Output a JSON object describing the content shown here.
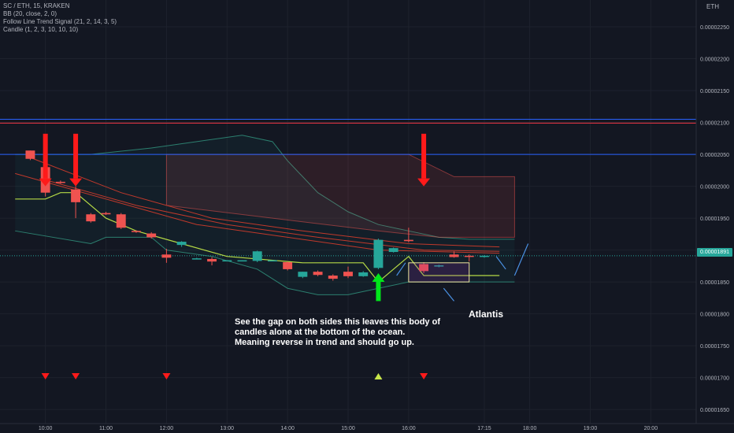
{
  "legend": {
    "symbol": "SC / ETH, 15, KRAKEN",
    "bb": "BB (20, close, 2, 0)",
    "follow_line": "Follow Line Trend Signal (21, 2, 14, 3, 5)",
    "candle": "Candle (1, 2, 3, 10, 10, 10)"
  },
  "currency_badge": "ETH",
  "last_price_tag": "0.00001891",
  "annotations": {
    "note_lines": [
      "See the gap on both sides this leaves this body of",
      "candles alone at the bottom of the ocean.",
      "Meaning reverse in trend and should go up."
    ],
    "atlantis": "Atlantis"
  },
  "colors": {
    "background": "#131722",
    "up": "#26a69a",
    "down": "#ef5350",
    "signal_down": "#ff1a1a",
    "signal_up": "#00e61a",
    "hline_blue": "#2962ff",
    "hline_red": "#f23645",
    "annotation_blue": "#4a90e2"
  },
  "chart_data": {
    "type": "candlestick",
    "symbol": "SC / ETH",
    "interval": "15",
    "exchange": "KRAKEN",
    "x_ticks": [
      "10:00",
      "11:00",
      "12:00",
      "13:00",
      "14:00",
      "15:00",
      "16:00",
      "17:15",
      "18:00",
      "19:00",
      "20:00"
    ],
    "y_ticks": [
      2.25e-05,
      2.2e-05,
      2.15e-05,
      2.1e-05,
      2.05e-05,
      2e-05,
      1.95e-05,
      1.9e-05,
      1.85e-05,
      1.8e-05,
      1.75e-05,
      1.7e-05,
      1.65e-05
    ],
    "y_tick_labels": [
      "0.00002250",
      "0.00002200",
      "0.00002150",
      "0.00002100",
      "0.00002050",
      "0.00002000",
      "0.00001950",
      "0.00001900",
      "0.00001850",
      "0.00001800",
      "0.00001750",
      "0.00001700",
      "0.00001650"
    ],
    "ylim": [
      1.628e-05,
      2.292e-05
    ],
    "last_price": 1.891e-05,
    "horizontal_lines": [
      {
        "price": 2.105e-05,
        "color": "#2962ff"
      },
      {
        "price": 2.099e-05,
        "color": "#f23645"
      },
      {
        "price": 2.05e-05,
        "color": "#2962ff"
      }
    ],
    "candles": [
      {
        "time": "09:45",
        "open": 2.056e-05,
        "high": 2.056e-05,
        "low": 2.041e-05,
        "close": 2.043e-05
      },
      {
        "time": "10:00",
        "open": 2.03e-05,
        "high": 2.032e-05,
        "low": 1.984e-05,
        "close": 1.99e-05
      },
      {
        "time": "10:15",
        "open": 2.007e-05,
        "high": 2.009e-05,
        "low": 2.004e-05,
        "close": 2.006e-05
      },
      {
        "time": "10:30",
        "open": 1.995e-05,
        "high": 2e-05,
        "low": 1.95e-05,
        "close": 1.975e-05
      },
      {
        "time": "10:45",
        "open": 1.956e-05,
        "high": 1.958e-05,
        "low": 1.943e-05,
        "close": 1.945e-05
      },
      {
        "time": "11:00",
        "open": 1.958e-05,
        "high": 1.96e-05,
        "low": 1.955e-05,
        "close": 1.956e-05
      },
      {
        "time": "11:15",
        "open": 1.956e-05,
        "high": 1.958e-05,
        "low": 1.933e-05,
        "close": 1.935e-05
      },
      {
        "time": "11:30",
        "open": 1.93e-05,
        "high": 1.931e-05,
        "low": 1.927e-05,
        "close": 1.929e-05
      },
      {
        "time": "11:45",
        "open": 1.926e-05,
        "high": 1.928e-05,
        "low": 1.918e-05,
        "close": 1.92e-05
      },
      {
        "time": "12:00",
        "open": 1.893e-05,
        "high": 1.902e-05,
        "low": 1.88e-05,
        "close": 1.888e-05
      },
      {
        "time": "12:15",
        "open": 1.908e-05,
        "high": 1.914e-05,
        "low": 1.905e-05,
        "close": 1.913e-05
      },
      {
        "time": "12:30",
        "open": 1.887e-05,
        "high": 1.888e-05,
        "low": 1.886e-05,
        "close": 1.887e-05
      },
      {
        "time": "12:45",
        "open": 1.886e-05,
        "high": 1.889e-05,
        "low": 1.876e-05,
        "close": 1.882e-05
      },
      {
        "time": "13:00",
        "open": 1.883e-05,
        "high": 1.884e-05,
        "low": 1.883e-05,
        "close": 1.884e-05
      },
      {
        "time": "13:15",
        "open": 1.883e-05,
        "high": 1.884e-05,
        "low": 1.883e-05,
        "close": 1.884e-05
      },
      {
        "time": "13:30",
        "open": 1.883e-05,
        "high": 1.899e-05,
        "low": 1.881e-05,
        "close": 1.898e-05
      },
      {
        "time": "13:45",
        "open": 1.883e-05,
        "high": 1.884e-05,
        "low": 1.883e-05,
        "close": 1.884e-05
      },
      {
        "time": "14:00",
        "open": 1.881e-05,
        "high": 1.882e-05,
        "low": 1.868e-05,
        "close": 1.87e-05
      },
      {
        "time": "14:15",
        "open": 1.858e-05,
        "high": 1.866e-05,
        "low": 1.856e-05,
        "close": 1.866e-05
      },
      {
        "time": "14:30",
        "open": 1.866e-05,
        "high": 1.868e-05,
        "low": 1.859e-05,
        "close": 1.861e-05
      },
      {
        "time": "14:45",
        "open": 1.86e-05,
        "high": 1.862e-05,
        "low": 1.852e-05,
        "close": 1.855e-05
      },
      {
        "time": "15:00",
        "open": 1.866e-05,
        "high": 1.874e-05,
        "low": 1.856e-05,
        "close": 1.859e-05
      },
      {
        "time": "15:15",
        "open": 1.859e-05,
        "high": 1.867e-05,
        "low": 1.858e-05,
        "close": 1.865e-05
      },
      {
        "time": "15:30",
        "open": 1.872e-05,
        "high": 1.918e-05,
        "low": 1.87e-05,
        "close": 1.916e-05
      },
      {
        "time": "15:45",
        "open": 1.897e-05,
        "high": 1.904e-05,
        "low": 1.896e-05,
        "close": 1.903e-05
      },
      {
        "time": "16:00",
        "open": 1.916e-05,
        "high": 1.935e-05,
        "low": 1.912e-05,
        "close": 1.914e-05
      },
      {
        "time": "16:15",
        "open": 1.878e-05,
        "high": 1.881e-05,
        "low": 1.864e-05,
        "close": 1.867e-05
      },
      {
        "time": "16:30",
        "open": 1.875e-05,
        "high": 1.877e-05,
        "low": 1.873e-05,
        "close": 1.876e-05
      },
      {
        "time": "16:45",
        "open": 1.893e-05,
        "high": 1.898e-05,
        "low": 1.888e-05,
        "close": 1.889e-05
      },
      {
        "time": "17:00",
        "open": 1.891e-05,
        "high": 1.893e-05,
        "low": 1.882e-05,
        "close": 1.89e-05
      },
      {
        "time": "17:15",
        "open": 1.89e-05,
        "high": 1.892e-05,
        "low": 1.888e-05,
        "close": 1.891e-05
      }
    ],
    "bollinger_upper": [
      [
        "09:30",
        2.05e-05
      ],
      [
        "10:45",
        2.05e-05
      ],
      [
        "11:45",
        2.06e-05
      ],
      [
        "12:30",
        2.07e-05
      ],
      [
        "13:15",
        2.08e-05
      ],
      [
        "13:45",
        2.07e-05
      ],
      [
        "14:00",
        2.04e-05
      ],
      [
        "14:30",
        1.99e-05
      ],
      [
        "15:00",
        1.96e-05
      ],
      [
        "15:30",
        1.94e-05
      ],
      [
        "16:00",
        1.93e-05
      ],
      [
        "16:30",
        1.92e-05
      ],
      [
        "17:00",
        1.917e-05
      ],
      [
        "17:45",
        1.917e-05
      ]
    ],
    "bollinger_lower": [
      [
        "09:30",
        1.93e-05
      ],
      [
        "10:45",
        1.91e-05
      ],
      [
        "11:00",
        1.92e-05
      ],
      [
        "11:45",
        1.92e-05
      ],
      [
        "12:00",
        1.9e-05
      ],
      [
        "12:45",
        1.89e-05
      ],
      [
        "13:30",
        1.87e-05
      ],
      [
        "14:00",
        1.84e-05
      ],
      [
        "14:30",
        1.83e-05
      ],
      [
        "15:00",
        1.83e-05
      ],
      [
        "15:30",
        1.84e-05
      ],
      [
        "16:00",
        1.85e-05
      ],
      [
        "16:30",
        1.85e-05
      ],
      [
        "17:00",
        1.85e-05
      ],
      [
        "17:45",
        1.85e-05
      ]
    ],
    "follow_line": [
      [
        "09:30",
        1.98e-05
      ],
      [
        "10:00",
        1.98e-05
      ],
      [
        "10:15",
        1.99e-05
      ],
      [
        "10:30",
        1.99e-05
      ],
      [
        "11:00",
        1.95e-05
      ],
      [
        "11:30",
        1.93e-05
      ],
      [
        "12:15",
        1.91e-05
      ],
      [
        "13:00",
        1.89e-05
      ],
      [
        "14:15",
        1.88e-05
      ],
      [
        "15:15",
        1.88e-05
      ],
      [
        "15:30",
        1.85e-05
      ],
      [
        "15:45",
        1.87e-05
      ],
      [
        "16:00",
        1.89e-05
      ],
      [
        "16:15",
        1.86e-05
      ],
      [
        "17:30",
        1.86e-05
      ]
    ],
    "signals": [
      {
        "time": "10:00",
        "direction": "down"
      },
      {
        "time": "10:30",
        "direction": "down"
      },
      {
        "time": "15:30",
        "direction": "up"
      },
      {
        "time": "16:15",
        "direction": "down"
      }
    ],
    "bottom_markers": [
      {
        "time": "10:00",
        "direction": "down"
      },
      {
        "time": "10:30",
        "direction": "down"
      },
      {
        "time": "12:00",
        "direction": "down"
      },
      {
        "time": "15:30",
        "direction": "up"
      },
      {
        "time": "16:15",
        "direction": "down"
      }
    ]
  }
}
